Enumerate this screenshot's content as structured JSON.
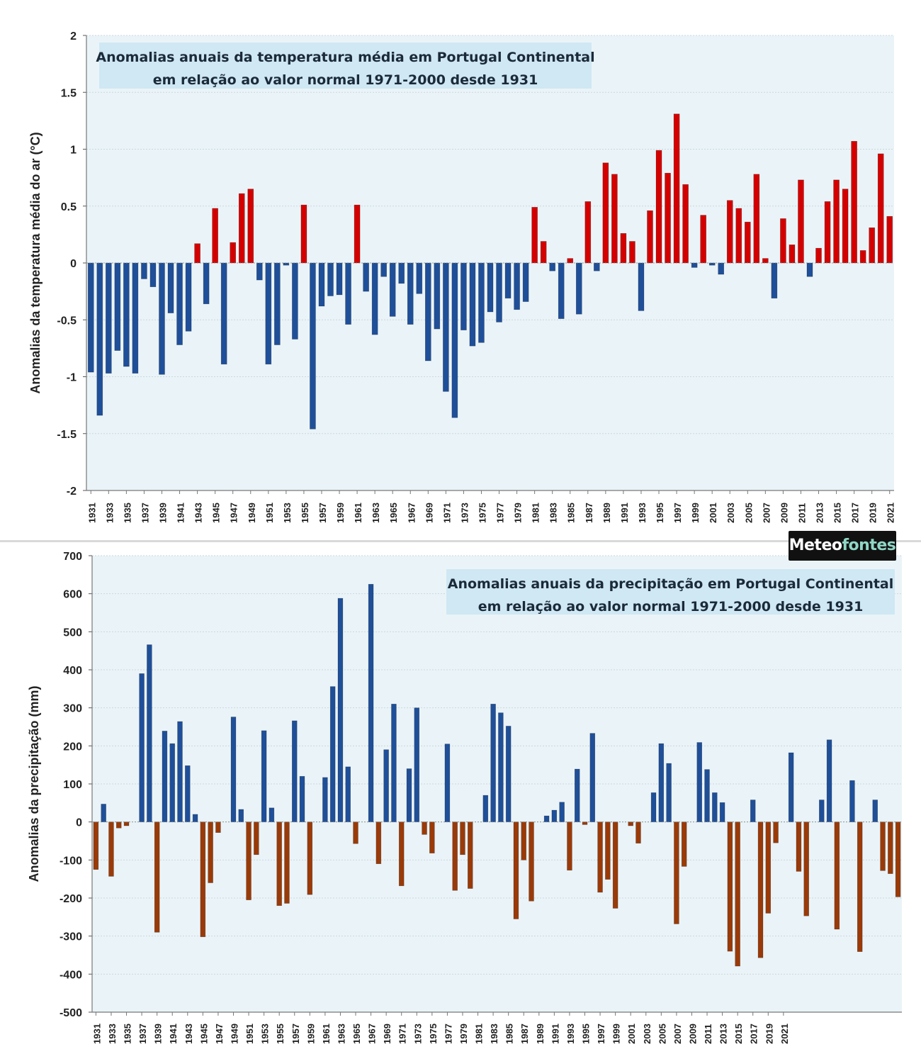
{
  "brand": {
    "part1": "Meteo",
    "part2": "fontes"
  },
  "colors": {
    "plot_bg": "#eaf4f8",
    "title_bg": "#cfe8f3",
    "grid": "#c9d7de",
    "temp_pos": "#d40000",
    "temp_neg": "#1f4f99",
    "prec_pos": "#1f4f99",
    "prec_neg": "#9a3a08"
  },
  "chart_data": [
    {
      "type": "bar",
      "title_line1": "Anomalias anuais da temperatura média em Portugal Continental",
      "title_line2": "em relação ao valor normal 1971-2000 desde 1931",
      "ylabel": "Anomalias da temperatura média do ar (°C)",
      "xlabel": "",
      "ylim": [
        -2,
        2
      ],
      "yticks": [
        2,
        1.5,
        1,
        0.5,
        0,
        -0.5,
        -1,
        -1.5,
        -2
      ],
      "ytick_labels": [
        "2",
        "1.5",
        "1",
        "0.5",
        "0",
        "-0.5",
        "-1",
        "-1.5",
        "-2"
      ],
      "grid": true,
      "x_start": 1931,
      "xtick_labels": [
        "1931",
        "1933",
        "1935",
        "1937",
        "1939",
        "1941",
        "1943",
        "1945",
        "1947",
        "1949",
        "1951",
        "1953",
        "1955",
        "1957",
        "1959",
        "1961",
        "1963",
        "1965",
        "1967",
        "1969",
        "1971",
        "1973",
        "1975",
        "1977",
        "1979",
        "1981",
        "1983",
        "1985",
        "1987",
        "1989",
        "1991",
        "1993",
        "1995",
        "1997",
        "1999",
        "2001",
        "2003",
        "2005",
        "2007",
        "2009",
        "2011",
        "2013",
        "2015",
        "2017",
        "2019",
        "2021"
      ],
      "values": [
        -0.96,
        -1.34,
        -0.97,
        -0.77,
        -0.91,
        -0.97,
        -0.14,
        -0.21,
        -0.98,
        -0.44,
        -0.72,
        -0.6,
        0.17,
        -0.36,
        0.48,
        -0.89,
        0.18,
        0.61,
        0.65,
        -0.15,
        -0.89,
        -0.72,
        -0.02,
        -0.67,
        0.51,
        -1.46,
        -0.38,
        -0.29,
        -0.28,
        -0.54,
        0.51,
        -0.25,
        -0.63,
        -0.12,
        -0.47,
        -0.18,
        -0.54,
        -0.27,
        -0.86,
        -0.58,
        -1.13,
        -1.36,
        -0.59,
        -0.73,
        -0.7,
        -0.43,
        -0.52,
        -0.31,
        -0.41,
        -0.34,
        0.49,
        0.19,
        -0.07,
        -0.49,
        0.04,
        -0.45,
        0.54,
        -0.07,
        0.88,
        0.78,
        0.26,
        0.19,
        -0.42,
        0.46,
        0.99,
        0.79,
        1.31,
        0.69,
        -0.04,
        0.42,
        -0.02,
        -0.1,
        0.55,
        0.48,
        0.36,
        0.78,
        0.04,
        -0.31,
        0.39,
        0.16,
        0.73,
        -0.12,
        0.13,
        0.54,
        0.73,
        0.65,
        1.07,
        0.11,
        0.31,
        0.96,
        0.41
      ]
    },
    {
      "type": "bar",
      "title_line1": "Anomalias anuais da precipitação em Portugal Continental",
      "title_line2": "em relação ao valor normal 1971-2000 desde 1931",
      "ylabel": "Anomalias da precipitação (mm)",
      "xlabel": "",
      "ylim": [
        -500,
        700
      ],
      "yticks": [
        700,
        600,
        500,
        400,
        300,
        200,
        100,
        0,
        -100,
        -200,
        -300,
        -400,
        -500
      ],
      "ytick_labels": [
        "700",
        "600",
        "500",
        "400",
        "300",
        "200",
        "100",
        "0",
        "-100",
        "-200",
        "-300",
        "-400",
        "-500"
      ],
      "grid": true,
      "x_start": 1931,
      "xtick_labels": [
        "1931",
        "1933",
        "1935",
        "1937",
        "1939",
        "1941",
        "1943",
        "1945",
        "1947",
        "1949",
        "1951",
        "1953",
        "1955",
        "1957",
        "1959",
        "1961",
        "1963",
        "1965",
        "1967",
        "1969",
        "1971",
        "1973",
        "1975",
        "1977",
        "1979",
        "1981",
        "1983",
        "1985",
        "1987",
        "1989",
        "1991",
        "1993",
        "1995",
        "1997",
        "1999",
        "2001",
        "2003",
        "2005",
        "2007",
        "2009",
        "2011",
        "2013",
        "2015",
        "2017",
        "2019",
        "2021"
      ],
      "values": [
        -125,
        47,
        -143,
        -16,
        -10,
        0,
        390,
        466,
        -290,
        239,
        206,
        264,
        148,
        20,
        -302,
        -160,
        -28,
        0,
        276,
        33,
        -205,
        -86,
        240,
        37,
        -220,
        -214,
        266,
        120,
        -191,
        0,
        117,
        356,
        588,
        145,
        -57,
        0,
        625,
        -110,
        190,
        310,
        -168,
        140,
        300,
        -33,
        -82,
        0,
        205,
        -180,
        -86,
        -175,
        0,
        70,
        310,
        287,
        252,
        -255,
        -100,
        -208,
        0,
        16,
        31,
        52,
        -127,
        139,
        -7,
        233,
        -185,
        -151,
        -227,
        0,
        -10,
        -56,
        0,
        77,
        206,
        154,
        -268,
        -117,
        0,
        209,
        138,
        77,
        51,
        -340,
        -379,
        0,
        58,
        -357,
        -240,
        -55,
        0,
        182,
        -130,
        -247,
        0,
        58,
        216,
        -282,
        0,
        109,
        -341,
        0,
        58,
        -128,
        -136,
        -197
      ]
    }
  ]
}
